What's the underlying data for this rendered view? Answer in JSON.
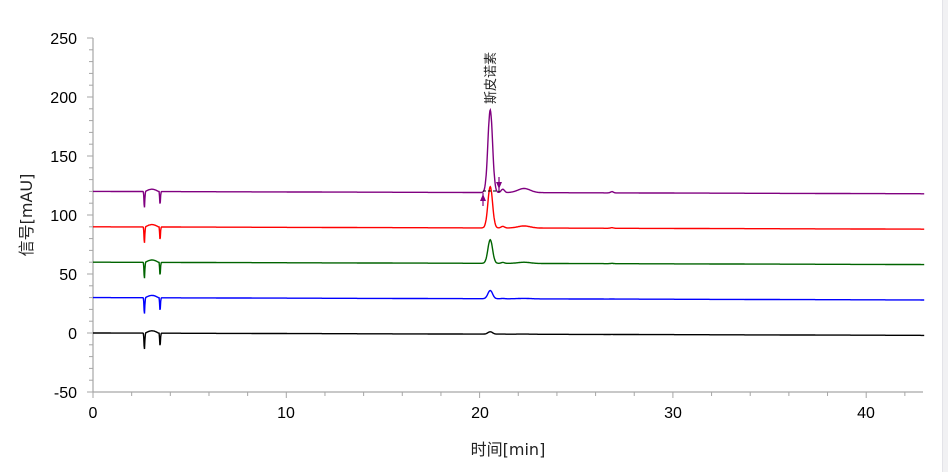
{
  "chart_data": {
    "type": "line",
    "title": "",
    "xlabel": "时间[min]",
    "ylabel": "信号[mAU]",
    "xlim": [
      0,
      43
    ],
    "ylim": [
      -50,
      250
    ],
    "xticks": [
      0,
      10,
      20,
      30,
      40
    ],
    "yticks": [
      -50,
      0,
      50,
      100,
      150,
      200,
      250
    ],
    "xtick_labels": [
      "0",
      "10",
      "20",
      "30",
      "40"
    ],
    "ytick_labels": [
      "-50",
      "0",
      "50",
      "100",
      "150",
      "200",
      "250"
    ],
    "grid": false,
    "legend": "none",
    "annotations": [
      {
        "text": "斯皮诺素",
        "x": 20.6,
        "y": 200,
        "rotation": -90,
        "series": "trace-5"
      }
    ],
    "integration_markers": [
      {
        "type": "peak-start",
        "x": 20.1,
        "y": 113,
        "series": "trace-5"
      },
      {
        "type": "peak-end",
        "x": 21.2,
        "y": 125,
        "series": "trace-5"
      }
    ],
    "series": [
      {
        "name": "trace-1",
        "color": "#000000",
        "baseline": 0,
        "end_value": -2,
        "points": [
          [
            0,
            0
          ],
          [
            2.6,
            0
          ],
          [
            2.65,
            -15
          ],
          [
            2.7,
            0
          ],
          [
            3.0,
            1.5
          ],
          [
            3.4,
            0
          ],
          [
            3.45,
            -10
          ],
          [
            3.5,
            0
          ],
          [
            20.2,
            0
          ],
          [
            20.55,
            2
          ],
          [
            20.8,
            0
          ],
          [
            43,
            -2
          ]
        ]
      },
      {
        "name": "trace-2",
        "color": "#0000ff",
        "baseline": 30,
        "end_value": 28,
        "points": [
          [
            0,
            30
          ],
          [
            2.6,
            30
          ],
          [
            2.65,
            15
          ],
          [
            2.7,
            30
          ],
          [
            3.0,
            32
          ],
          [
            3.4,
            30
          ],
          [
            3.45,
            20
          ],
          [
            3.5,
            30
          ],
          [
            20.2,
            30
          ],
          [
            20.55,
            37
          ],
          [
            20.9,
            30
          ],
          [
            21.2,
            31
          ],
          [
            21.5,
            30
          ],
          [
            43,
            28
          ]
        ]
      },
      {
        "name": "trace-3",
        "color": "#006400",
        "baseline": 60,
        "end_value": 58,
        "points": [
          [
            0,
            60
          ],
          [
            2.6,
            60
          ],
          [
            2.65,
            45
          ],
          [
            2.7,
            60
          ],
          [
            3.0,
            62
          ],
          [
            3.4,
            60
          ],
          [
            3.45,
            50
          ],
          [
            3.5,
            60
          ],
          [
            20.2,
            60
          ],
          [
            20.55,
            80
          ],
          [
            20.9,
            60
          ],
          [
            21.2,
            61
          ],
          [
            21.5,
            60
          ],
          [
            22.2,
            61
          ],
          [
            23,
            60
          ],
          [
            43,
            58
          ]
        ]
      },
      {
        "name": "trace-4",
        "color": "#ff0000",
        "baseline": 90,
        "end_value": 88,
        "points": [
          [
            0,
            90
          ],
          [
            2.6,
            90
          ],
          [
            2.65,
            75
          ],
          [
            2.7,
            90
          ],
          [
            3.0,
            92
          ],
          [
            3.4,
            90
          ],
          [
            3.45,
            80
          ],
          [
            3.5,
            90
          ],
          [
            20.1,
            90
          ],
          [
            20.5,
            125
          ],
          [
            20.9,
            90
          ],
          [
            21.2,
            93
          ],
          [
            21.5,
            90
          ],
          [
            22.3,
            92
          ],
          [
            23,
            90
          ],
          [
            26.7,
            90.5
          ],
          [
            27,
            90
          ],
          [
            43,
            88
          ]
        ]
      },
      {
        "name": "trace-5",
        "color": "#800080",
        "baseline": 120,
        "end_value": 118,
        "points": [
          [
            0,
            120
          ],
          [
            2.6,
            120
          ],
          [
            2.65,
            105
          ],
          [
            2.7,
            120
          ],
          [
            3.0,
            122
          ],
          [
            3.4,
            120
          ],
          [
            3.45,
            110
          ],
          [
            3.5,
            120
          ],
          [
            20.1,
            121
          ],
          [
            20.55,
            190
          ],
          [
            21.0,
            122
          ],
          [
            21.3,
            121
          ],
          [
            21.6,
            120
          ],
          [
            22.3,
            124
          ],
          [
            23,
            120
          ],
          [
            26.8,
            121
          ],
          [
            27,
            120
          ],
          [
            43,
            118
          ]
        ]
      }
    ]
  },
  "axes": {
    "x_title": "时间[min]",
    "y_title": "信号[mAU]",
    "x_ticks": [
      "0",
      "10",
      "20",
      "30",
      "40"
    ],
    "y_ticks": [
      "250",
      "200",
      "150",
      "100",
      "50",
      "0",
      "-50"
    ]
  },
  "annotation": {
    "peak_label": "斯皮诺素"
  }
}
